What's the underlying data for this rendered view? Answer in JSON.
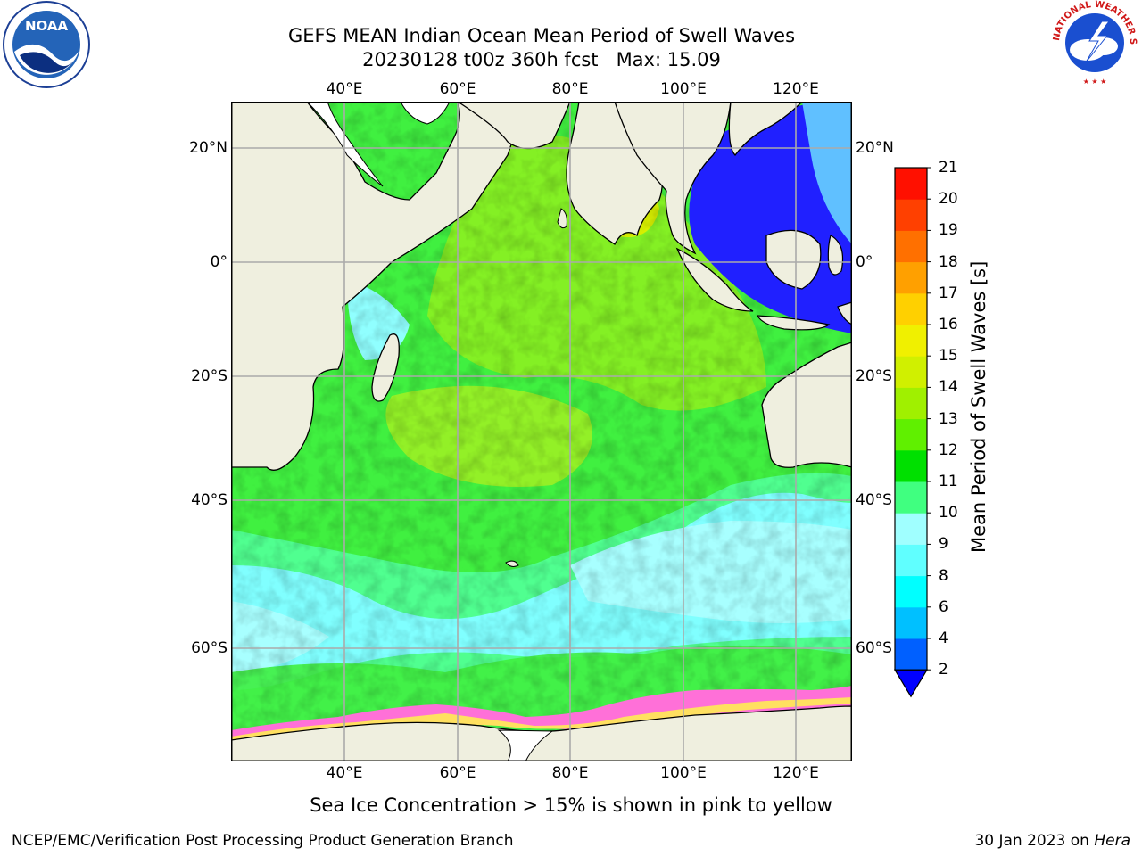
{
  "title_line1": "GEFS MEAN Indian Ocean Mean Period of Swell Waves",
  "title_line2": "20230128 t00z 360h fcst   Max: 15.09",
  "lon_labels": [
    "40°E",
    "60°E",
    "80°E",
    "100°E",
    "120°E"
  ],
  "lat_labels": [
    "20°N",
    "0°",
    "20°S",
    "40°S",
    "60°S"
  ],
  "colorbar": {
    "label": "Mean Period of Swell Waves [s]",
    "levels": [
      "2",
      "4",
      "6",
      "8",
      "9",
      "10",
      "11",
      "12",
      "13",
      "14",
      "15",
      "16",
      "17",
      "18",
      "19",
      "20",
      "21"
    ],
    "colors": [
      "#0000ff",
      "#0060ff",
      "#00c0ff",
      "#00ffff",
      "#60ffff",
      "#a0ffff",
      "#40ff80",
      "#00e000",
      "#60f000",
      "#a0f000",
      "#d0f000",
      "#f0f000",
      "#ffd000",
      "#ffa000",
      "#ff7000",
      "#ff4000",
      "#ff1000",
      "#ff0000"
    ]
  },
  "note": "Sea Ice Concentration > 15% is shown in pink to yellow",
  "footer_left": "NCEP/EMC/Verification Post Processing Product Generation Branch",
  "footer_right_prefix": "30 Jan 2023 on ",
  "footer_right_machine": "Hera",
  "logos": {
    "left": "NOAA",
    "right": "NATIONAL WEATHER SERVICE"
  }
}
